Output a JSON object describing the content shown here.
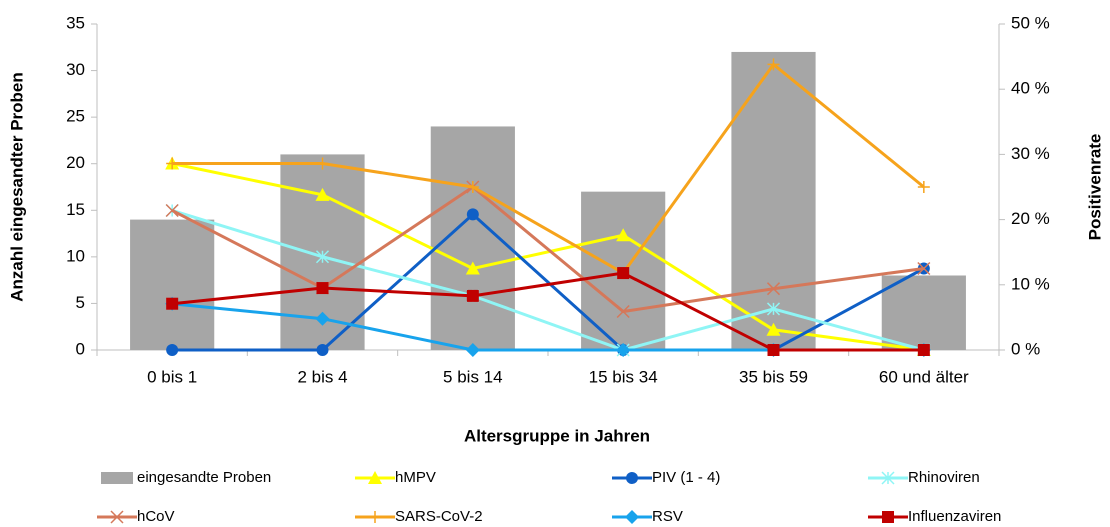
{
  "chart_data": {
    "type": "combo",
    "x_label": "Altersgruppe in Jahren",
    "y_label": "Anzahl eingesandter Proben",
    "y2_label": "Positivenrate",
    "categories": [
      "0 bis 1",
      "2 bis 4",
      "5 bis 14",
      "15 bis 34",
      "35 bis 59",
      "60 und älter"
    ],
    "ylim": [
      0,
      35
    ],
    "yticks": [
      0,
      5,
      10,
      15,
      20,
      25,
      30,
      35
    ],
    "y2lim": [
      0,
      50
    ],
    "y2ticks": [
      {
        "value": 0,
        "label": "0 %"
      },
      {
        "value": 10,
        "label": "10 %"
      },
      {
        "value": 20,
        "label": "20 %"
      },
      {
        "value": 30,
        "label": "30 %"
      },
      {
        "value": 40,
        "label": "40 %"
      },
      {
        "value": 50,
        "label": "50 %"
      }
    ],
    "grid": false,
    "series": [
      {
        "name": "eingesandte Proben",
        "type": "bar",
        "color": "#a6a6a6",
        "values": [
          14,
          21,
          24,
          17,
          32,
          8
        ]
      },
      {
        "name": "hMPV",
        "type": "line",
        "axis": "y2",
        "marker": "triangle",
        "color": "#ffff00",
        "values": [
          28.6,
          23.8,
          12.5,
          17.6,
          3.1,
          0
        ]
      },
      {
        "name": "PIV (1 - 4)",
        "type": "line",
        "axis": "y2",
        "marker": "circle",
        "color": "#0f5fc6",
        "values": [
          0,
          0,
          20.8,
          0,
          0,
          12.5
        ]
      },
      {
        "name": "Rhinoviren",
        "type": "line",
        "axis": "y2",
        "marker": "star",
        "color": "#8ff5f5",
        "values": [
          21.4,
          14.3,
          8.3,
          0,
          6.3,
          0
        ]
      },
      {
        "name": "hCoV",
        "type": "line",
        "axis": "y2",
        "marker": "x",
        "color": "#d5785a",
        "values": [
          21.4,
          9.5,
          25,
          5.9,
          9.4,
          12.5
        ]
      },
      {
        "name": "SARS-CoV-2",
        "type": "line",
        "axis": "y2",
        "marker": "plus",
        "color": "#f6a31c",
        "values": [
          28.6,
          28.6,
          25,
          11.8,
          43.8,
          25
        ]
      },
      {
        "name": "RSV",
        "type": "line",
        "axis": "y2",
        "marker": "diamond",
        "color": "#18a3ec",
        "values": [
          7.1,
          4.8,
          0,
          0,
          0,
          0
        ]
      },
      {
        "name": "Influenzaviren",
        "type": "line",
        "axis": "y2",
        "marker": "square",
        "color": "#c00000",
        "values": [
          7.1,
          9.5,
          8.3,
          11.8,
          0,
          0
        ]
      }
    ]
  }
}
